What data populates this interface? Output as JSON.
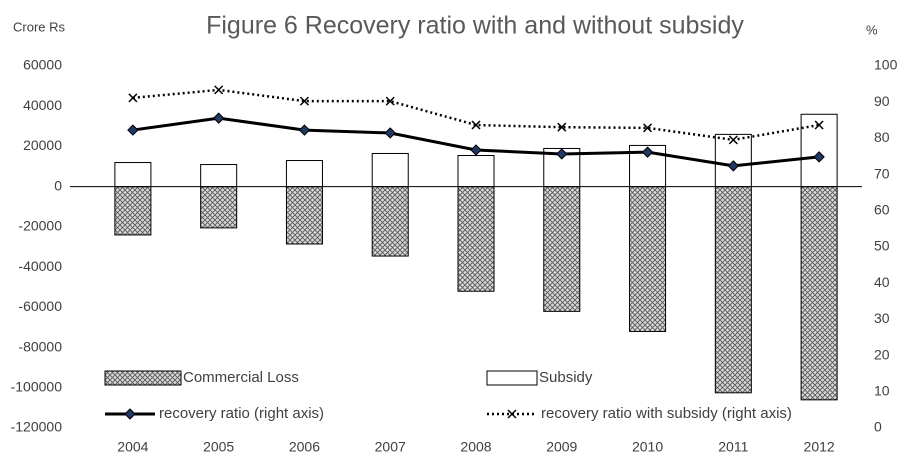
{
  "chart_data": {
    "type": "bar-line",
    "title": "Figure 6 Recovery ratio with and without subsidy",
    "y_label": "Crore Rs",
    "y2_label": "%",
    "categories": [
      "2004",
      "2005",
      "2006",
      "2007",
      "2008",
      "2009",
      "2010",
      "2011",
      "2012"
    ],
    "series": [
      {
        "name": "Commercial Loss",
        "type": "bar",
        "color": "#808080",
        "pattern": "crosshatch",
        "values": [
          -24000,
          -20500,
          -28500,
          -34500,
          -52000,
          -62000,
          -72000,
          -102500,
          -106000
        ]
      },
      {
        "name": "Subsidy",
        "type": "bar",
        "color": "#ffffff",
        "values": [
          12000,
          11000,
          13000,
          16500,
          15500,
          19000,
          20500,
          26000,
          36000
        ]
      },
      {
        "name": "recovery ratio (right axis)",
        "type": "line",
        "axis": "y2",
        "color": "#000000",
        "marker": "diamond",
        "values": [
          82.3,
          85.6,
          82.3,
          81.5,
          76.8,
          75.7,
          76.2,
          72.4,
          74.9
        ]
      },
      {
        "name": "recovery ratio with subsidy (right axis)",
        "type": "line",
        "axis": "y2",
        "color": "#000000",
        "marker": "x",
        "dash": "dotted",
        "values": [
          91.2,
          93.4,
          90.3,
          90.3,
          83.7,
          83.1,
          82.9,
          79.6,
          83.7
        ]
      }
    ],
    "ylim": [
      -120000,
      60000
    ],
    "yticks": [
      -120000,
      -100000,
      -80000,
      -60000,
      -40000,
      -20000,
      0,
      20000,
      40000,
      60000
    ],
    "y2lim": [
      0,
      100
    ],
    "y2ticks": [
      0,
      10,
      20,
      30,
      40,
      50,
      60,
      70,
      80,
      90,
      100
    ],
    "grid": false
  }
}
